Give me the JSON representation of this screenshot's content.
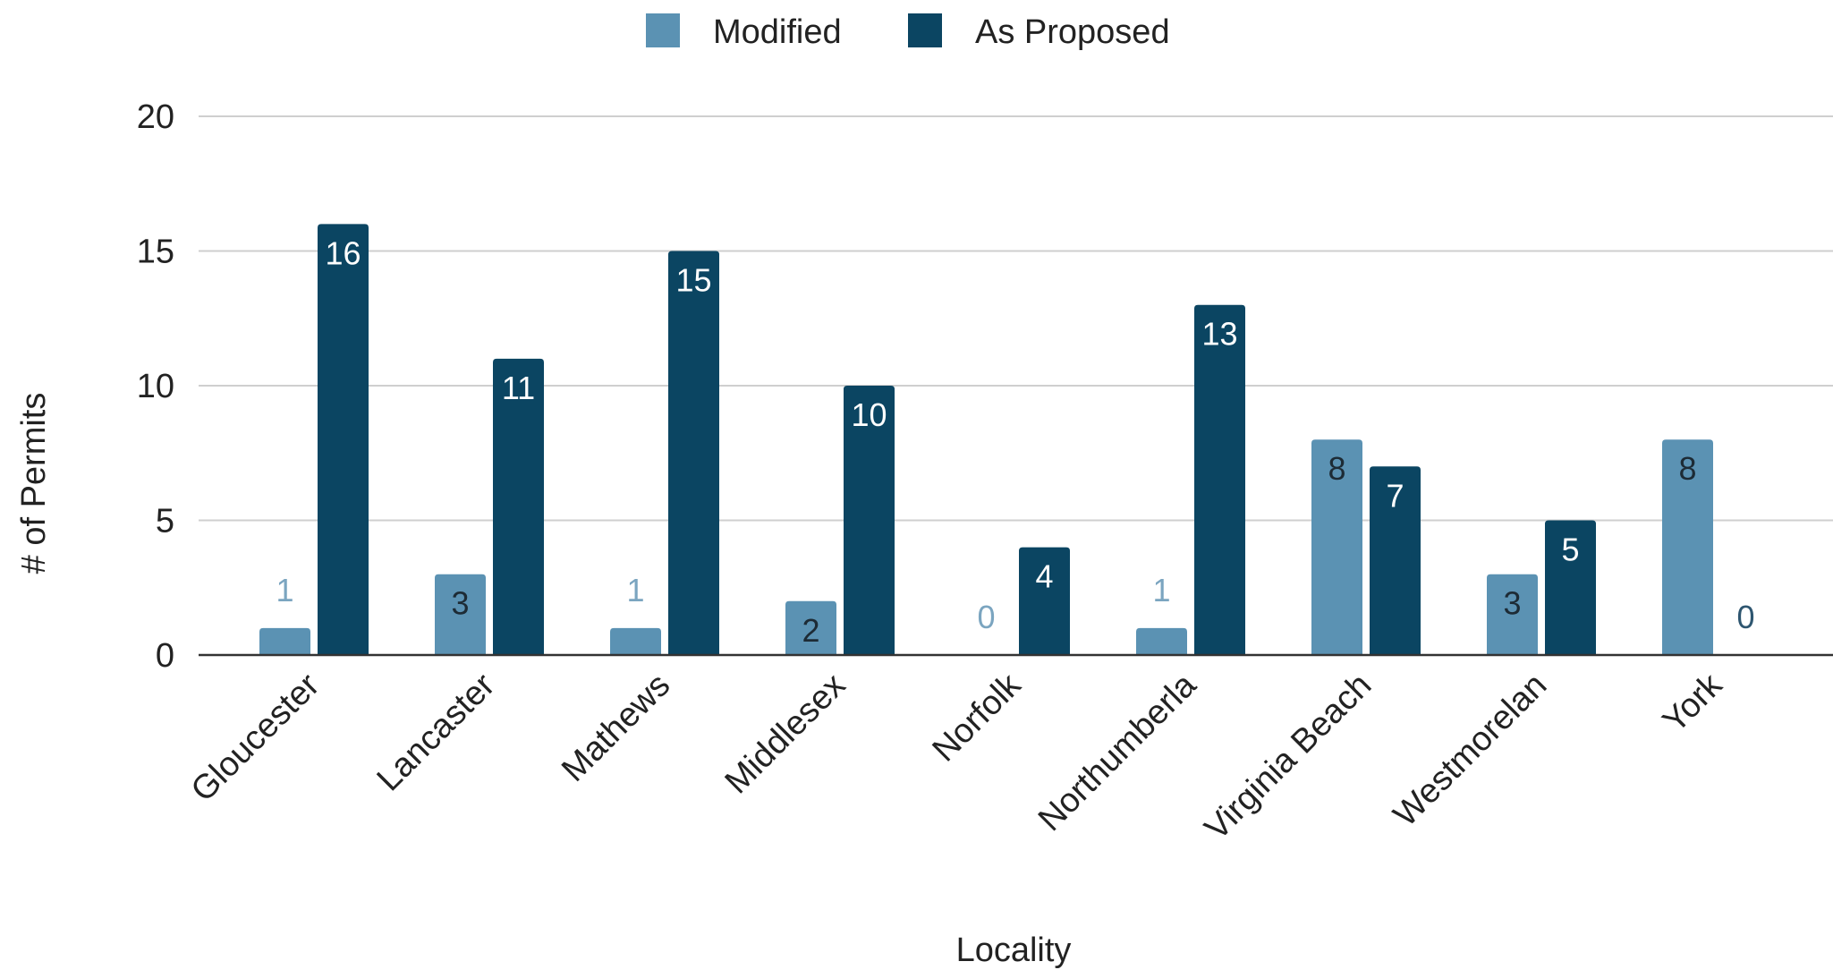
{
  "chart_data": {
    "type": "bar",
    "title": "",
    "xlabel": "Locality",
    "ylabel": "# of Permits",
    "ylim": [
      0,
      20
    ],
    "yticks": [
      0,
      5,
      10,
      15,
      20
    ],
    "grid": true,
    "legend_position": "top-center",
    "categories": [
      "Gloucester",
      "Lancaster",
      "Mathews",
      "Middlesex",
      "Norfolk",
      "Northumberla",
      "Virginia Beach",
      "Westmorelan",
      "York"
    ],
    "series": [
      {
        "name": "Modified",
        "color": "#5b92b3",
        "values": [
          1,
          3,
          1,
          2,
          0,
          1,
          8,
          3,
          8
        ]
      },
      {
        "name": "As Proposed",
        "color": "#0b4562",
        "values": [
          16,
          11,
          15,
          10,
          4,
          13,
          7,
          5,
          0
        ]
      }
    ]
  }
}
